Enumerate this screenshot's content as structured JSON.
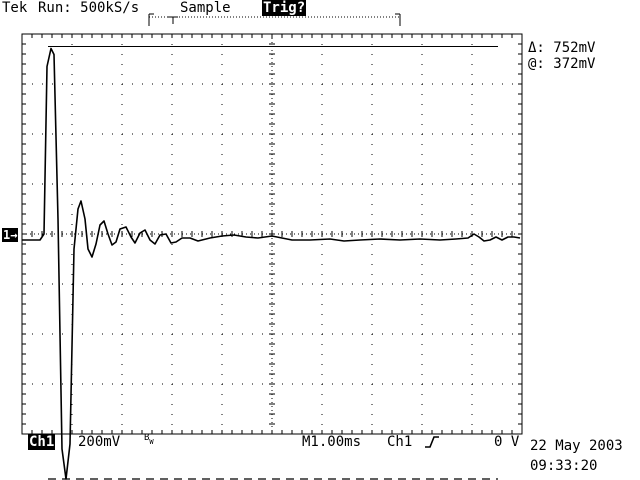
{
  "header": {
    "brand": "Tek",
    "run_state": "Run: 500kS/s",
    "acq_mode": "Sample",
    "trigger_status": "Trig?"
  },
  "readout": {
    "delta_label": "Δ: 752mV",
    "at_label": "@: 372mV"
  },
  "channel_marker": "1→",
  "footer": {
    "channel": "Ch1",
    "scale": "200mV",
    "bw": "B",
    "bw_sub": "W",
    "timebase": "M1.00ms",
    "trig_source": "Ch1",
    "trig_slope_icon": "rising-edge-icon",
    "trig_level": "0 V",
    "date": "22 May 2003",
    "time": "09:33:20"
  },
  "waveform": {
    "cursor_upper_v": 0.75,
    "cursor_lower_v": -0.98,
    "baseline_v": -0.02
  },
  "colors": {
    "trace": "#000000",
    "grid": "#000000",
    "background": "#ffffff"
  }
}
